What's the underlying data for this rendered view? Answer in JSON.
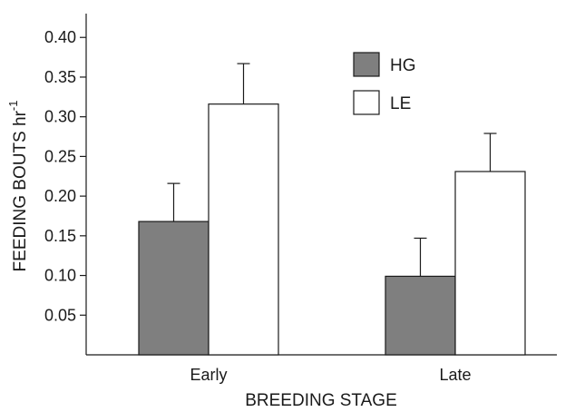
{
  "chart_data": {
    "type": "bar",
    "categories": [
      "Early",
      "Late"
    ],
    "series": [
      {
        "name": "HG",
        "values": [
          0.168,
          0.099
        ],
        "errors": [
          0.048,
          0.048
        ],
        "color": "#7f7f7f"
      },
      {
        "name": "LE",
        "values": [
          0.316,
          0.231
        ],
        "errors": [
          0.051,
          0.048
        ],
        "color": "#ffffff"
      }
    ],
    "xlabel": "BREEDING STAGE",
    "ylabel_main": "FEEDING BOUTS  hr",
    "ylabel_sup": "-1",
    "ylim": [
      0,
      0.43
    ],
    "yticks": [
      "0.05",
      "0.10",
      "0.15",
      "0.20",
      "0.25",
      "0.30",
      "0.35",
      "0.40"
    ],
    "legend_position": "top-center",
    "grid": false
  }
}
